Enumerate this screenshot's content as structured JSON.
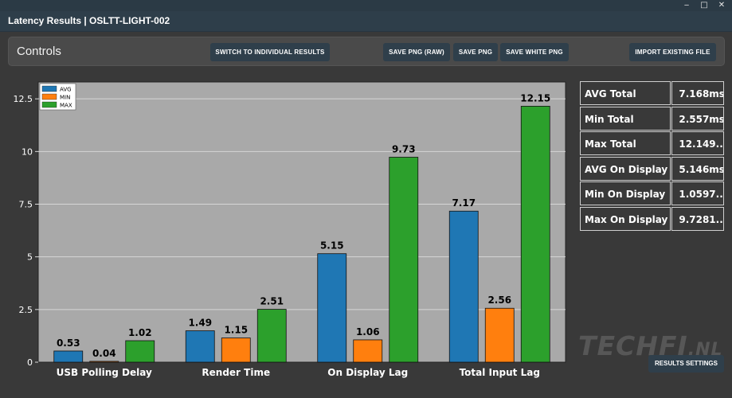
{
  "window": {
    "title": "Latency Results | OSLTT-LIGHT-002"
  },
  "titlebar_controls": {
    "minimize": "‒",
    "maximize": "□",
    "close": "✕"
  },
  "controls": {
    "title": "Controls",
    "buttons": {
      "switch": "SWITCH TO INDIVIDUAL RESULTS",
      "save_raw": "SAVE PNG (RAW)",
      "save_png": "SAVE PNG",
      "save_white": "SAVE WHITE PNG",
      "import": "IMPORT EXISTING FILE"
    }
  },
  "stats": [
    {
      "label": "AVG Total",
      "value": "7.168ms"
    },
    {
      "label": "Min Total",
      "value": "2.557ms"
    },
    {
      "label": "Max Total",
      "value": "12.149..."
    },
    {
      "label": "AVG On Display",
      "value": "5.146ms"
    },
    {
      "label": "Min On Display",
      "value": "1.0597..."
    },
    {
      "label": "Max On Display",
      "value": "9.7281..."
    }
  ],
  "watermark": {
    "main": "TECHFI",
    "suffix": ".NL"
  },
  "results_settings": "RESULTS SETTINGS",
  "chart_data": {
    "type": "bar",
    "categories": [
      "USB Polling Delay",
      "Render Time",
      "On Display Lag",
      "Total Input Lag"
    ],
    "series": [
      {
        "name": "AVG",
        "color": "#1f77b4",
        "values": [
          0.53,
          1.49,
          5.15,
          7.17
        ]
      },
      {
        "name": "MIN",
        "color": "#ff7f0e",
        "values": [
          0.04,
          1.15,
          1.06,
          2.56
        ]
      },
      {
        "name": "MAX",
        "color": "#2ca02c",
        "values": [
          1.02,
          2.51,
          9.73,
          12.15
        ]
      }
    ],
    "ylim": [
      0,
      13.3
    ],
    "yticks": [
      0,
      2.5,
      5,
      7.5,
      10,
      12.5
    ],
    "ytick_labels": [
      "0",
      "2.5",
      "5",
      "7.5",
      "10",
      "12.5"
    ],
    "legend_position": "top-left",
    "grid": "horizontal",
    "plot_background": "#a9a9a9"
  }
}
